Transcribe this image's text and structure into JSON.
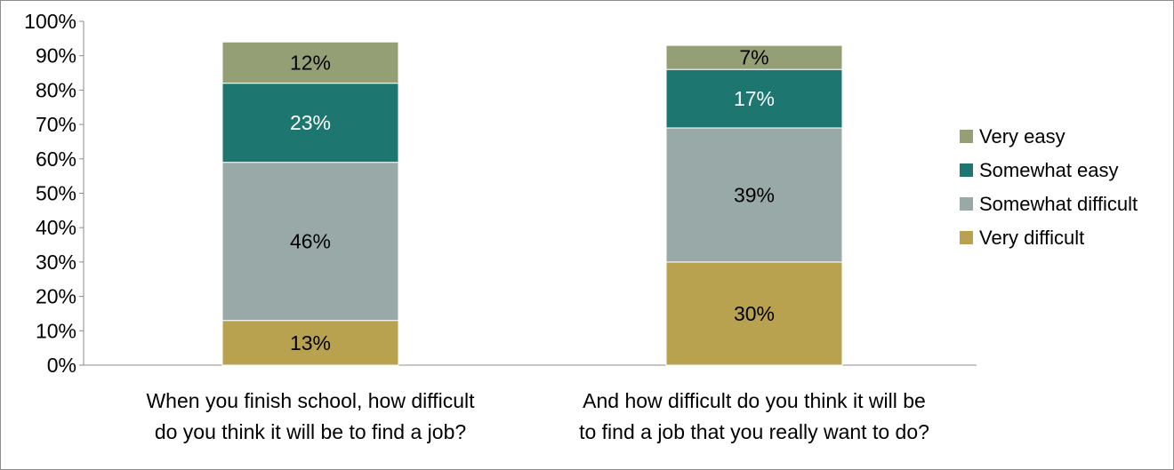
{
  "chart_data": {
    "type": "bar",
    "stacked": true,
    "categories": [
      [
        "When you finish school, how difficult",
        "do you think it will be to find a job?"
      ],
      [
        "And how difficult do you think it will be",
        "to find a job that you really want to do?"
      ]
    ],
    "series": [
      {
        "name": "Very difficult",
        "values": [
          13,
          30
        ],
        "labels": [
          "13%",
          "30%"
        ],
        "color": "#b8a24f",
        "label_color": "#000000"
      },
      {
        "name": "Somewhat difficult",
        "values": [
          46,
          39
        ],
        "labels": [
          "46%",
          "39%"
        ],
        "color": "#98a9a8",
        "label_color": "#000000"
      },
      {
        "name": "Somewhat easy",
        "values": [
          23,
          17
        ],
        "labels": [
          "23%",
          "17%"
        ],
        "color": "#1e7670",
        "label_color": "#ffffff"
      },
      {
        "name": "Very easy",
        "values": [
          12,
          7
        ],
        "labels": [
          "12%",
          "7%"
        ],
        "color": "#949f75",
        "label_color": "#000000"
      }
    ],
    "y_ticks": [
      "0%",
      "10%",
      "20%",
      "30%",
      "40%",
      "50%",
      "60%",
      "70%",
      "80%",
      "90%",
      "100%"
    ],
    "ylim": [
      0,
      100
    ],
    "grid": false,
    "legend_position": "right",
    "legend_order": [
      "Very easy",
      "Somewhat easy",
      "Somewhat difficult",
      "Very difficult"
    ],
    "title": "",
    "xlabel": "",
    "ylabel": ""
  }
}
